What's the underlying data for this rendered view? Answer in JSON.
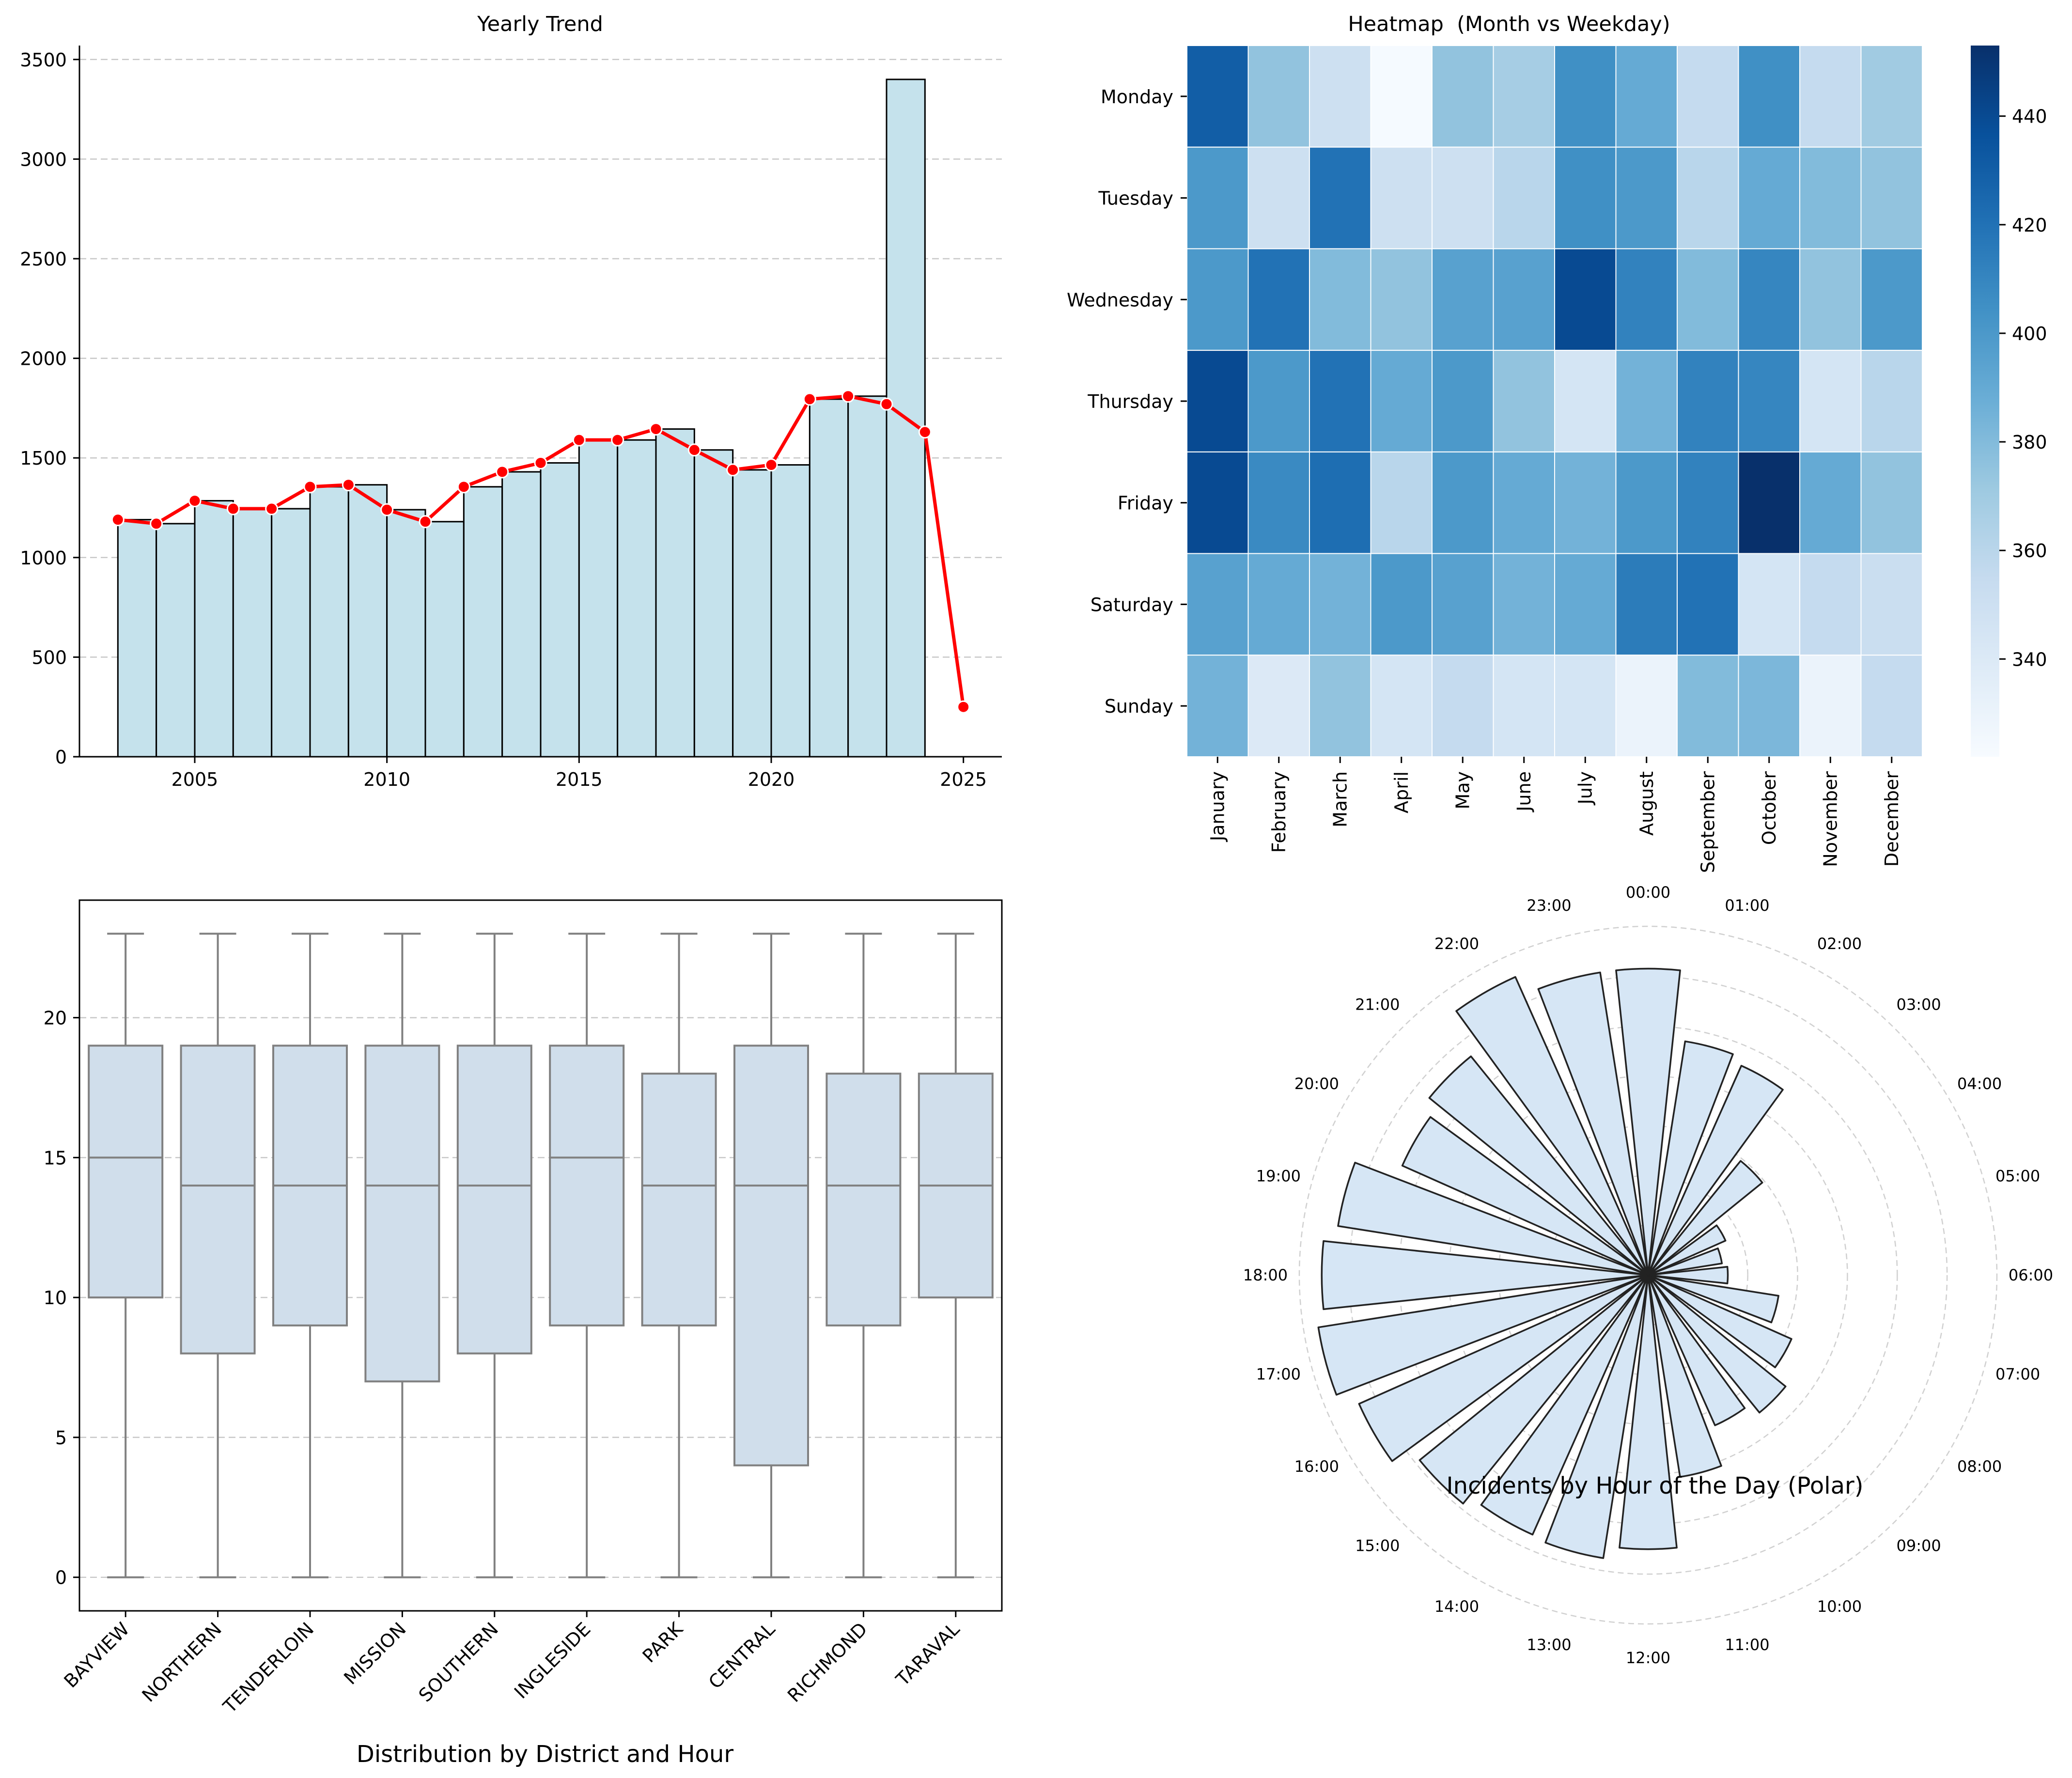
{
  "colors": {
    "hist_fill": "#c5e2ec",
    "trend_line": "#ff0000",
    "box_fill": "#d0deeb",
    "box_line": "#808080",
    "polar_fill": "#d6e6f5",
    "grid": "#c8c8c8",
    "heat_low": "#f7fbff",
    "heat_high": "#08306b"
  },
  "chart_data": [
    {
      "type": "bar",
      "subtype": "histogram-with-line",
      "title": "Yearly Trend",
      "xlabel": "",
      "ylabel": "",
      "xlim": [
        2002.0,
        2026.0
      ],
      "ylim": [
        0,
        3570
      ],
      "xticks": [
        2005,
        2010,
        2015,
        2020,
        2025
      ],
      "yticks": [
        0,
        500,
        1000,
        1500,
        2000,
        2500,
        3000,
        3500
      ],
      "grid": "y dashed",
      "bins": [
        {
          "start": 2003,
          "end": 2004,
          "value": 1190
        },
        {
          "start": 2004,
          "end": 2005,
          "value": 1170
        },
        {
          "start": 2005,
          "end": 2006,
          "value": 1285
        },
        {
          "start": 2006,
          "end": 2007,
          "value": 1245
        },
        {
          "start": 2007,
          "end": 2008,
          "value": 1245
        },
        {
          "start": 2008,
          "end": 2009,
          "value": 1355
        },
        {
          "start": 2009,
          "end": 2010,
          "value": 1365
        },
        {
          "start": 2010,
          "end": 2011,
          "value": 1240
        },
        {
          "start": 2011,
          "end": 2012,
          "value": 1180
        },
        {
          "start": 2012,
          "end": 2013,
          "value": 1355
        },
        {
          "start": 2013,
          "end": 2014,
          "value": 1430
        },
        {
          "start": 2014,
          "end": 2015,
          "value": 1475
        },
        {
          "start": 2015,
          "end": 2016,
          "value": 1590
        },
        {
          "start": 2016,
          "end": 2017,
          "value": 1590
        },
        {
          "start": 2017,
          "end": 2018,
          "value": 1645
        },
        {
          "start": 2018,
          "end": 2019,
          "value": 1540
        },
        {
          "start": 2019,
          "end": 2020,
          "value": 1440
        },
        {
          "start": 2020,
          "end": 2021,
          "value": 1465
        },
        {
          "start": 2021,
          "end": 2022,
          "value": 1795
        },
        {
          "start": 2022,
          "end": 2023,
          "value": 1810
        },
        {
          "start": 2023,
          "end": 2024,
          "value": 3400
        }
      ],
      "series": [
        {
          "x": [
            2003,
            2004,
            2005,
            2006,
            2007,
            2008,
            2009,
            2010,
            2011,
            2012,
            2013,
            2014,
            2015,
            2016,
            2017,
            2018,
            2019,
            2020,
            2021,
            2022,
            2023,
            2024,
            2025
          ],
          "values": [
            1190,
            1170,
            1285,
            1245,
            1245,
            1355,
            1365,
            1240,
            1180,
            1355,
            1430,
            1475,
            1590,
            1590,
            1645,
            1540,
            1440,
            1465,
            1795,
            1810,
            1770,
            1630,
            250
          ]
        }
      ]
    },
    {
      "type": "heatmap",
      "title": "Heatmap  (Month vs Weekday)",
      "xlabel": "",
      "ylabel": "",
      "x": [
        "January",
        "February",
        "March",
        "April",
        "May",
        "June",
        "July",
        "August",
        "September",
        "October",
        "November",
        "December"
      ],
      "y": [
        "Monday",
        "Tuesday",
        "Wednesday",
        "Thursday",
        "Friday",
        "Saturday",
        "Sunday"
      ],
      "values": [
        [
          430,
          375,
          350,
          323,
          375,
          368,
          405,
          390,
          355,
          405,
          355,
          370
        ],
        [
          400,
          350,
          420,
          350,
          350,
          360,
          405,
          400,
          360,
          390,
          380,
          375
        ],
        [
          400,
          420,
          380,
          375,
          395,
          395,
          440,
          412,
          380,
          410,
          375,
          400
        ],
        [
          440,
          400,
          420,
          390,
          400,
          375,
          345,
          385,
          412,
          410,
          345,
          360
        ],
        [
          440,
          408,
          422,
          360,
          400,
          390,
          385,
          400,
          412,
          453,
          390,
          375
        ],
        [
          395,
          390,
          385,
          400,
          395,
          385,
          390,
          415,
          420,
          345,
          355,
          352
        ],
        [
          385,
          340,
          375,
          345,
          355,
          345,
          345,
          330,
          380,
          382,
          330,
          355
        ]
      ],
      "colorbar": {
        "min": 322,
        "max": 453,
        "ticks": [
          340,
          360,
          380,
          400,
          420,
          440
        ]
      }
    },
    {
      "type": "box",
      "title": "",
      "xlabel": "Distribution by District and Hour",
      "ylabel": "",
      "ylim": [
        -1.2,
        24.2
      ],
      "yticks": [
        0,
        5,
        10,
        15,
        20
      ],
      "grid": "y dashed",
      "categories": [
        "BAYVIEW",
        "NORTHERN",
        "TENDERLOIN",
        "MISSION",
        "SOUTHERN",
        "INGLESIDE",
        "PARK",
        "CENTRAL",
        "RICHMOND",
        "TARAVAL"
      ],
      "boxes": [
        {
          "min": 0,
          "q1": 10,
          "median": 15,
          "q3": 19,
          "max": 23
        },
        {
          "min": 0,
          "q1": 8,
          "median": 14,
          "q3": 19,
          "max": 23
        },
        {
          "min": 0,
          "q1": 9,
          "median": 14,
          "q3": 19,
          "max": 23
        },
        {
          "min": 0,
          "q1": 7,
          "median": 14,
          "q3": 19,
          "max": 23
        },
        {
          "min": 0,
          "q1": 8,
          "median": 14,
          "q3": 19,
          "max": 23
        },
        {
          "min": 0,
          "q1": 9,
          "median": 15,
          "q3": 19,
          "max": 23
        },
        {
          "min": 0,
          "q1": 9,
          "median": 14,
          "q3": 18,
          "max": 23
        },
        {
          "min": 0,
          "q1": 4,
          "median": 14,
          "q3": 19,
          "max": 23
        },
        {
          "min": 0,
          "q1": 9,
          "median": 14,
          "q3": 18,
          "max": 23
        },
        {
          "min": 0,
          "q1": 10,
          "median": 14,
          "q3": 18,
          "max": 23
        }
      ]
    },
    {
      "type": "bar",
      "subtype": "polar",
      "title": "",
      "xlabel": "Incidents by Hour of the Day (Polar)",
      "categories": [
        "00:00",
        "01:00",
        "02:00",
        "03:00",
        "04:00",
        "05:00",
        "06:00",
        "07:00",
        "08:00",
        "09:00",
        "10:00",
        "11:00",
        "12:00",
        "13:00",
        "14:00",
        "15:00",
        "16:00",
        "17:00",
        "18:00",
        "19:00",
        "20:00",
        "21:00",
        "22:00",
        "23:00"
      ],
      "values": [
        615,
        475,
        460,
        295,
        170,
        150,
        160,
        265,
        315,
        355,
        330,
        410,
        550,
        575,
        570,
        590,
        635,
        670,
        655,
        630,
        540,
        565,
        655,
        615
      ],
      "rmax": 700,
      "grid": "dashed rings"
    }
  ]
}
